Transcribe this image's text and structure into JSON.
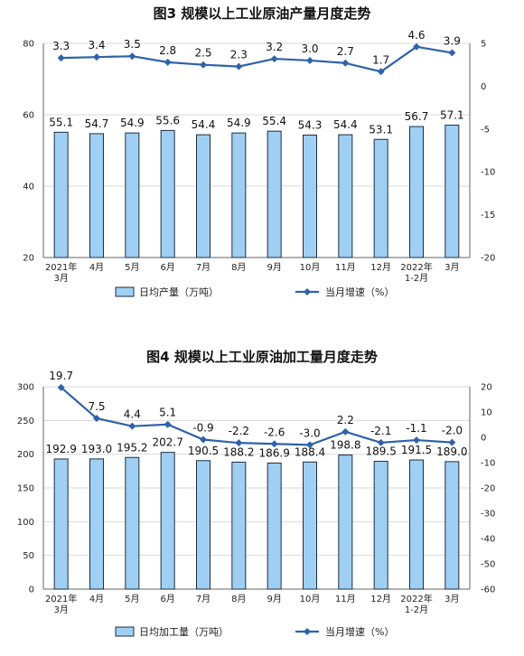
{
  "chart_data": [
    {
      "type": "bar",
      "title": "图3  规模以上工业原油产量月度走势",
      "categories": [
        "2021年\n3月",
        "4月",
        "5月",
        "6月",
        "7月",
        "8月",
        "9月",
        "10月",
        "11月",
        "12月",
        "2022年\n1-2月",
        "3月"
      ],
      "series": [
        {
          "name": "日均产量（万吨）",
          "type": "bar",
          "axis": "left",
          "values": [
            55.1,
            54.7,
            54.9,
            55.6,
            54.4,
            54.9,
            55.4,
            54.3,
            54.4,
            53.1,
            56.7,
            57.1
          ],
          "labels": [
            "55.1",
            "54.7",
            "54.9",
            "55.6",
            "54.4",
            "54.9",
            "55.4",
            "54.3",
            "54.4",
            "53.1",
            "56.7",
            "57.1"
          ]
        },
        {
          "name": "当月增速（%）",
          "type": "line",
          "axis": "right",
          "values": [
            3.3,
            3.4,
            3.5,
            2.8,
            2.5,
            2.3,
            3.2,
            3.0,
            2.7,
            1.7,
            4.6,
            3.9
          ],
          "labels": [
            "3.3",
            "3.4",
            "3.5",
            "2.8",
            "2.5",
            "2.3",
            "3.2",
            "3.0",
            "2.7",
            "1.7",
            "4.6",
            "3.9"
          ]
        }
      ],
      "ylim_left": [
        20,
        80
      ],
      "yticks_left": [
        "20",
        "40",
        "60",
        "80"
      ],
      "ylim_right": [
        -20,
        5
      ],
      "yticks_right": [
        "-20",
        "-15",
        "-10",
        "-5",
        "0",
        "5"
      ],
      "grid": true,
      "legend": "bottom"
    },
    {
      "type": "bar",
      "title": "图4  规模以上工业原油加工量月度走势",
      "categories": [
        "2021年\n3月",
        "4月",
        "5月",
        "6月",
        "7月",
        "8月",
        "9月",
        "10月",
        "11月",
        "12月",
        "2022年\n1-2月",
        "3月"
      ],
      "series": [
        {
          "name": "日均加工量（万吨）",
          "type": "bar",
          "axis": "left",
          "values": [
            192.9,
            193.0,
            195.2,
            202.7,
            190.5,
            188.2,
            186.9,
            188.4,
            198.8,
            189.5,
            191.5,
            189.0
          ],
          "labels": [
            "192.9",
            "193.0",
            "195.2",
            "202.7",
            "190.5",
            "188.2",
            "186.9",
            "188.4",
            "198.8",
            "189.5",
            "191.5",
            "189.0"
          ]
        },
        {
          "name": "当月增速（%）",
          "type": "line",
          "axis": "right",
          "values": [
            19.7,
            7.5,
            4.4,
            5.1,
            -0.9,
            -2.2,
            -2.6,
            -3.0,
            2.2,
            -2.1,
            -1.1,
            -2.0
          ],
          "labels": [
            "19.7",
            "7.5",
            "4.4",
            "5.1",
            "-0.9",
            "-2.2",
            "-2.6",
            "-3.0",
            "2.2",
            "-2.1",
            "-1.1",
            "-2.0"
          ]
        }
      ],
      "ylim_left": [
        0,
        300
      ],
      "yticks_left": [
        "0",
        "50",
        "100",
        "150",
        "200",
        "250",
        "300"
      ],
      "ylim_right": [
        -60,
        20
      ],
      "yticks_right": [
        "-60",
        "-50",
        "-40",
        "-30",
        "-20",
        "-10",
        "0",
        "10",
        "20"
      ],
      "grid": true,
      "legend": "bottom"
    }
  ]
}
